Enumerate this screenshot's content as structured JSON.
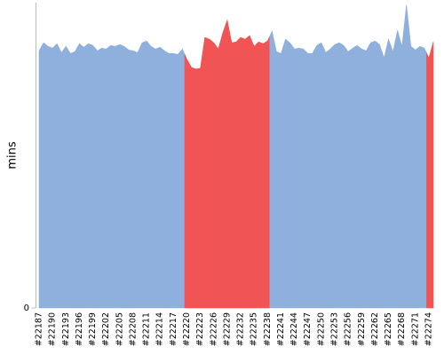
{
  "chart_data": {
    "type": "area",
    "y_label": "mins",
    "categories": [
      "#22187",
      null,
      null,
      "#22190",
      null,
      null,
      "#22193",
      null,
      null,
      "#22196",
      null,
      null,
      "#22199",
      null,
      null,
      "#22202",
      null,
      null,
      "#22205",
      null,
      null,
      "#22208",
      null,
      null,
      "#22211",
      null,
      null,
      "#22214",
      null,
      null,
      "#22217",
      null,
      null,
      "#22220",
      null,
      null,
      "#22223",
      null,
      null,
      "#22226",
      null,
      null,
      "#22229",
      null,
      null,
      "#22232",
      null,
      null,
      "#22235",
      null,
      null,
      "#22238",
      null,
      null,
      "#22241",
      null,
      null,
      "#22244",
      null,
      null,
      "#22247",
      null,
      null,
      "#22250",
      null,
      null,
      "#22253",
      null,
      null,
      "#22256",
      null,
      null,
      "#22259",
      null,
      null,
      "#22262",
      null,
      null,
      "#22265",
      null,
      null,
      "#22268",
      null,
      null,
      "#22271",
      null,
      null,
      "#22274",
      null
    ],
    "values": [
      57.7,
      59.5,
      58.7,
      58.3,
      59.3,
      57.3,
      58.7,
      57.1,
      57.5,
      59.3,
      58.5,
      59.3,
      58.9,
      57.7,
      58.3,
      58.1,
      58.9,
      58.7,
      59.1,
      58.7,
      57.9,
      57.7,
      57.3,
      59.5,
      59.9,
      58.7,
      58.1,
      58.5,
      57.7,
      57.1,
      57.1,
      56.9,
      58.1,
      55.8,
      54.0,
      53.6,
      53.8,
      60.7,
      60.3,
      59.5,
      58.1,
      61.7,
      64.6,
      59.5,
      59.7,
      60.7,
      60.3,
      61.1,
      58.7,
      59.7,
      59.3,
      59.9,
      62.1,
      57.5,
      57.1,
      60.3,
      59.5,
      58.1,
      58.3,
      58.1,
      57.1,
      57.1,
      58.9,
      59.5,
      57.3,
      58.1,
      59.1,
      59.5,
      58.9,
      57.5,
      58.3,
      58.9,
      58.1,
      57.7,
      59.5,
      59.9,
      59.1,
      56.1,
      60.3,
      57.5,
      62.3,
      58.7,
      68.0,
      58.7,
      57.9,
      58.7,
      58.3,
      56.1,
      59.7
    ],
    "point_colors": [
      "#8fb0dc",
      "#8fb0dc",
      "#8fb0dc",
      "#8fb0dc",
      "#8fb0dc",
      "#8fb0dc",
      "#8fb0dc",
      "#8fb0dc",
      "#8fb0dc",
      "#8fb0dc",
      "#8fb0dc",
      "#8fb0dc",
      "#8fb0dc",
      "#8fb0dc",
      "#8fb0dc",
      "#8fb0dc",
      "#8fb0dc",
      "#8fb0dc",
      "#8fb0dc",
      "#8fb0dc",
      "#8fb0dc",
      "#8fb0dc",
      "#8fb0dc",
      "#8fb0dc",
      "#8fb0dc",
      "#8fb0dc",
      "#8fb0dc",
      "#8fb0dc",
      "#8fb0dc",
      "#8fb0dc",
      "#8fb0dc",
      "#8fb0dc",
      "#8fb0dc",
      "#f05454",
      "#f05454",
      "#f05454",
      "#f05454",
      "#f05454",
      "#f05454",
      "#f05454",
      "#f05454",
      "#f05454",
      "#f05454",
      "#f05454",
      "#f05454",
      "#f05454",
      "#f05454",
      "#f05454",
      "#f05454",
      "#f05454",
      "#f05454",
      "#f05454",
      "#8fb0dc",
      "#8fb0dc",
      "#8fb0dc",
      "#8fb0dc",
      "#8fb0dc",
      "#8fb0dc",
      "#8fb0dc",
      "#8fb0dc",
      "#8fb0dc",
      "#8fb0dc",
      "#8fb0dc",
      "#8fb0dc",
      "#8fb0dc",
      "#8fb0dc",
      "#8fb0dc",
      "#8fb0dc",
      "#8fb0dc",
      "#8fb0dc",
      "#8fb0dc",
      "#8fb0dc",
      "#8fb0dc",
      "#8fb0dc",
      "#8fb0dc",
      "#8fb0dc",
      "#8fb0dc",
      "#8fb0dc",
      "#8fb0dc",
      "#8fb0dc",
      "#8fb0dc",
      "#8fb0dc",
      "#8fb0dc",
      "#8fb0dc",
      "#8fb0dc",
      "#8fb0dc",
      "#8fb0dc",
      "#f05454",
      "#f05454"
    ],
    "ylim": [
      0,
      68.5
    ],
    "yticks": [
      0
    ]
  }
}
